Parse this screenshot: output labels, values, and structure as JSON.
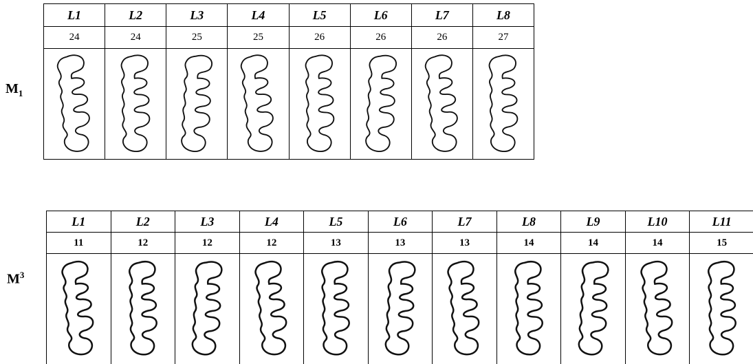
{
  "panels": [
    {
      "label": {
        "base": "M",
        "sub": "1"
      },
      "headers": [
        "L1",
        "L2",
        "L3",
        "L4",
        "L5",
        "L6",
        "L7",
        "L8"
      ],
      "values": [
        24,
        24,
        25,
        25,
        26,
        26,
        26,
        27
      ]
    },
    {
      "label": {
        "base": "M",
        "sup": "3"
      },
      "headers": [
        "L1",
        "L2",
        "L3",
        "L4",
        "L5",
        "L6",
        "L7",
        "L8",
        "L9",
        "L10",
        "L11"
      ],
      "values": [
        11,
        12,
        12,
        12,
        13,
        13,
        13,
        14,
        14,
        14,
        15
      ]
    }
  ]
}
